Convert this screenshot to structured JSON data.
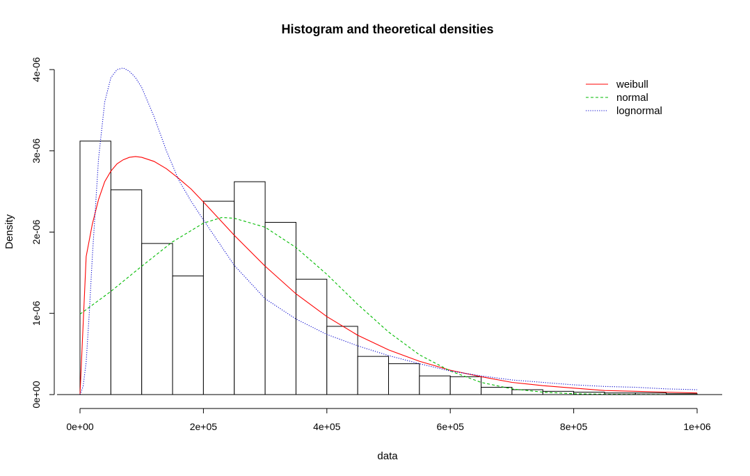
{
  "chart_data": {
    "type": "bar",
    "title": "Histogram and theoretical densities",
    "xlabel": "data",
    "ylabel": "Density",
    "xlim": [
      0,
      1000000
    ],
    "ylim": [
      0,
      4e-06
    ],
    "x_ticks": [
      0,
      200000,
      400000,
      600000,
      800000,
      1000000
    ],
    "x_tick_labels": [
      "0e+00",
      "2e+05",
      "4e+05",
      "6e+05",
      "8e+05",
      "1e+06"
    ],
    "y_ticks": [
      0,
      1e-06,
      2e-06,
      3e-06,
      4e-06
    ],
    "y_tick_labels": [
      "0e+00",
      "1e-06",
      "2e-06",
      "3e-06",
      "4e-06"
    ],
    "bin_width": 50000,
    "bins": [
      0,
      50000,
      100000,
      150000,
      200000,
      250000,
      300000,
      350000,
      400000,
      450000,
      500000,
      550000,
      600000,
      650000,
      700000,
      750000,
      800000,
      850000,
      900000,
      950000
    ],
    "values": [
      3.12e-06,
      2.52e-06,
      1.86e-06,
      1.46e-06,
      2.38e-06,
      2.62e-06,
      2.12e-06,
      1.42e-06,
      8.4e-07,
      4.7e-07,
      3.8e-07,
      2.3e-07,
      2.2e-07,
      9e-08,
      6e-08,
      4e-08,
      3e-08,
      2e-08,
      2e-08,
      1e-08
    ],
    "series": [
      {
        "name": "weibull",
        "color": "#ff0000",
        "dash": "solid",
        "x": [
          0,
          10000,
          20000,
          30000,
          40000,
          50000,
          60000,
          70000,
          80000,
          90000,
          100000,
          120000,
          140000,
          160000,
          180000,
          200000,
          250000,
          300000,
          350000,
          400000,
          450000,
          500000,
          550000,
          600000,
          650000,
          700000,
          750000,
          800000,
          850000,
          900000,
          950000,
          1000000
        ],
        "y": [
          0,
          1.7e-06,
          2.1e-06,
          2.4e-06,
          2.62e-06,
          2.75e-06,
          2.84e-06,
          2.89e-06,
          2.92e-06,
          2.93e-06,
          2.92e-06,
          2.87e-06,
          2.78e-06,
          2.66e-06,
          2.53e-06,
          2.37e-06,
          1.96e-06,
          1.58e-06,
          1.24e-06,
          9.6e-07,
          7.3e-07,
          5.5e-07,
          4.1e-07,
          3e-07,
          2.2e-07,
          1.5e-07,
          1.1e-07,
          8e-08,
          5e-08,
          4e-08,
          3e-08,
          2e-08
        ]
      },
      {
        "name": "normal",
        "color": "#00bb00",
        "dash": "dashed",
        "x": [
          0,
          50000,
          100000,
          150000,
          200000,
          230000,
          250000,
          300000,
          350000,
          400000,
          450000,
          500000,
          550000,
          600000,
          650000,
          700000,
          750000,
          800000,
          850000,
          900000,
          950000,
          1000000
        ],
        "y": [
          9.9e-07,
          1.27e-06,
          1.58e-06,
          1.88e-06,
          2.11e-06,
          2.18e-06,
          2.17e-06,
          2.06e-06,
          1.81e-06,
          1.48e-06,
          1.11e-06,
          7.7e-07,
          4.9e-07,
          2.9e-07,
          1.5e-07,
          7e-08,
          3e-08,
          1e-08,
          5e-09,
          2e-09,
          1e-09,
          5e-10
        ]
      },
      {
        "name": "lognormal",
        "color": "#0000cc",
        "dash": "dotted",
        "x": [
          0,
          5000,
          10000,
          15000,
          20000,
          30000,
          40000,
          50000,
          60000,
          70000,
          80000,
          90000,
          100000,
          120000,
          140000,
          160000,
          180000,
          200000,
          250000,
          300000,
          350000,
          400000,
          450000,
          500000,
          550000,
          600000,
          650000,
          700000,
          750000,
          800000,
          850000,
          900000,
          950000,
          1000000
        ],
        "y": [
          0,
          1e-07,
          4e-07,
          1e-06,
          1.7e-06,
          2.9e-06,
          3.6e-06,
          3.9e-06,
          4e-06,
          4.02e-06,
          3.98e-06,
          3.9e-06,
          3.78e-06,
          3.42e-06,
          3e-06,
          2.64e-06,
          2.38e-06,
          2.15e-06,
          1.59e-06,
          1.18e-06,
          9.3e-07,
          7.4e-07,
          6e-07,
          4.8e-07,
          3.8e-07,
          2.9e-07,
          2.3e-07,
          1.8e-07,
          1.5e-07,
          1.2e-07,
          1e-07,
          9e-08,
          7e-08,
          6e-08
        ]
      }
    ],
    "legend": {
      "position": "top-right",
      "items": [
        {
          "label": "weibull",
          "color": "#ff0000",
          "dash": "solid"
        },
        {
          "label": "normal",
          "color": "#00bb00",
          "dash": "dashed"
        },
        {
          "label": "lognormal",
          "color": "#0000cc",
          "dash": "dotted"
        }
      ]
    }
  }
}
